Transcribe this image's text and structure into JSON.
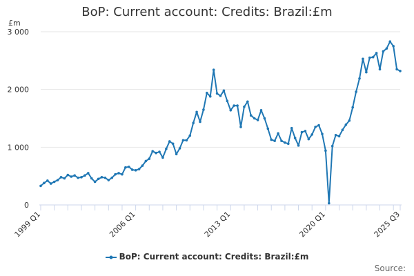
{
  "chart_data": {
    "type": "line",
    "title": "BoP: Current account: Credits: Brazil:£m",
    "ylabel": "£m",
    "xlabel": "",
    "ylim": [
      0,
      3000
    ],
    "yticks": [
      0,
      1000,
      2000,
      3000
    ],
    "ytick_labels": [
      "0",
      "1 000",
      "2 000",
      "3 000"
    ],
    "xtick_labels": [
      "1999 Q1",
      "2006 Q1",
      "2013 Q1",
      "2020 Q1",
      "2025 Q3"
    ],
    "xtick_quarter_index": [
      0,
      28,
      56,
      84,
      106
    ],
    "grid": true,
    "legend_position": "bottom",
    "line_color": "#1f77b4",
    "series": [
      {
        "name": "BoP: Current account: Credits: Brazil:£m",
        "x": [
          "1999 Q1",
          "1999 Q2",
          "1999 Q3",
          "1999 Q4",
          "2000 Q1",
          "2000 Q2",
          "2000 Q3",
          "2000 Q4",
          "2001 Q1",
          "2001 Q2",
          "2001 Q3",
          "2001 Q4",
          "2002 Q1",
          "2002 Q2",
          "2002 Q3",
          "2002 Q4",
          "2003 Q1",
          "2003 Q2",
          "2003 Q3",
          "2003 Q4",
          "2004 Q1",
          "2004 Q2",
          "2004 Q3",
          "2004 Q4",
          "2005 Q1",
          "2005 Q2",
          "2005 Q3",
          "2005 Q4",
          "2006 Q1",
          "2006 Q2",
          "2006 Q3",
          "2006 Q4",
          "2007 Q1",
          "2007 Q2",
          "2007 Q3",
          "2007 Q4",
          "2008 Q1",
          "2008 Q2",
          "2008 Q3",
          "2008 Q4",
          "2009 Q1",
          "2009 Q2",
          "2009 Q3",
          "2009 Q4",
          "2010 Q1",
          "2010 Q2",
          "2010 Q3",
          "2010 Q4",
          "2011 Q1",
          "2011 Q2",
          "2011 Q3",
          "2011 Q4",
          "2012 Q1",
          "2012 Q2",
          "2012 Q3",
          "2012 Q4",
          "2013 Q1",
          "2013 Q2",
          "2013 Q3",
          "2013 Q4",
          "2014 Q1",
          "2014 Q2",
          "2014 Q3",
          "2014 Q4",
          "2015 Q1",
          "2015 Q2",
          "2015 Q3",
          "2015 Q4",
          "2016 Q1",
          "2016 Q2",
          "2016 Q3",
          "2016 Q4",
          "2017 Q1",
          "2017 Q2",
          "2017 Q3",
          "2017 Q4",
          "2018 Q1",
          "2018 Q2",
          "2018 Q3",
          "2018 Q4",
          "2019 Q1",
          "2019 Q2",
          "2019 Q3",
          "2019 Q4",
          "2020 Q1",
          "2020 Q2",
          "2020 Q3",
          "2020 Q4",
          "2021 Q1",
          "2021 Q2",
          "2021 Q3",
          "2021 Q4",
          "2022 Q1",
          "2022 Q2",
          "2022 Q3",
          "2022 Q4",
          "2023 Q1",
          "2023 Q2",
          "2023 Q3",
          "2023 Q4",
          "2024 Q1",
          "2024 Q2",
          "2024 Q3",
          "2024 Q4",
          "2025 Q1",
          "2025 Q2",
          "2025 Q3"
        ],
        "values": [
          330,
          380,
          420,
          370,
          400,
          430,
          480,
          460,
          520,
          490,
          510,
          470,
          480,
          510,
          550,
          460,
          400,
          450,
          480,
          470,
          430,
          470,
          530,
          550,
          530,
          650,
          660,
          610,
          600,
          620,
          680,
          760,
          800,
          930,
          900,
          920,
          820,
          970,
          1100,
          1060,
          880,
          980,
          1120,
          1120,
          1200,
          1420,
          1610,
          1440,
          1650,
          1940,
          1880,
          2340,
          1930,
          1890,
          1980,
          1800,
          1640,
          1720,
          1720,
          1350,
          1700,
          1790,
          1550,
          1500,
          1470,
          1640,
          1500,
          1320,
          1130,
          1110,
          1240,
          1110,
          1080,
          1060,
          1330,
          1160,
          1030,
          1260,
          1280,
          1140,
          1220,
          1350,
          1380,
          1230,
          940,
          30,
          1020,
          1210,
          1190,
          1300,
          1390,
          1460,
          1690,
          1960,
          2190,
          2530,
          2300,
          2550,
          2560,
          2630,
          2350,
          2660,
          2710,
          2830,
          2750,
          2350,
          2320
        ]
      }
    ]
  },
  "legend": {
    "label": "BoP: Current account: Credits: Brazil:£m"
  },
  "footer": {
    "source_label": "Source:"
  }
}
